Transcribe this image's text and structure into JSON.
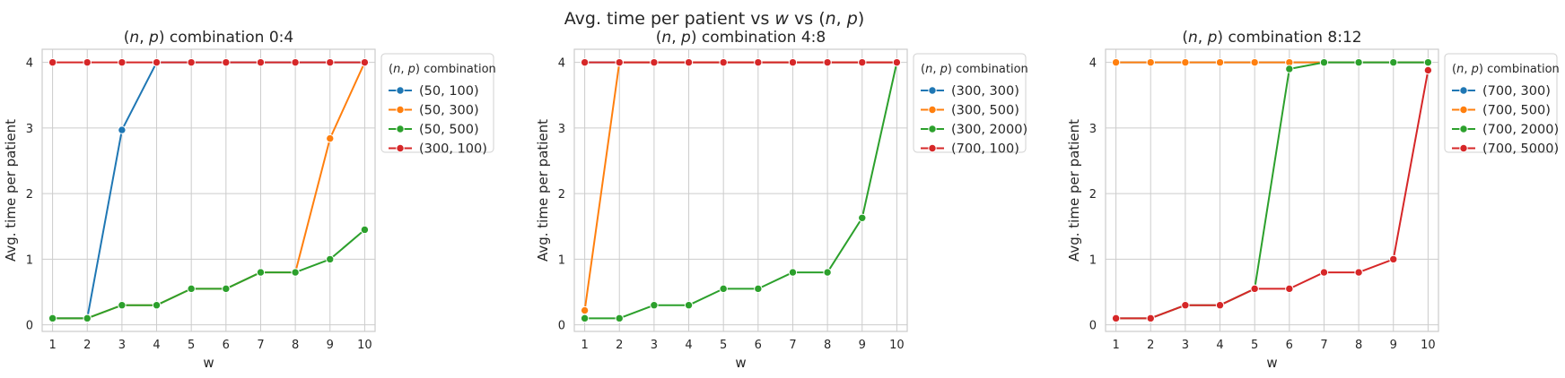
{
  "figure": {
    "suptitle": "Avg. time per patient vs w vs (n, p)"
  },
  "chart_data": [
    {
      "type": "line",
      "title": "(n, p) combination 0:4",
      "xlabel": "w",
      "ylabel": "Avg. time per patient",
      "x": [
        1,
        2,
        3,
        4,
        5,
        6,
        7,
        8,
        9,
        10
      ],
      "xlim": [
        0.7,
        10.3
      ],
      "ylim": [
        -0.1,
        4.2
      ],
      "yticks": [
        0,
        1,
        2,
        3,
        4
      ],
      "grid": true,
      "legend": {
        "title": "(n, p) combination",
        "placement": "outside-right-top"
      },
      "series": [
        {
          "name": "(50, 100)",
          "color": "#1f77b4",
          "values": [
            0.1,
            0.1,
            2.97,
            4,
            4,
            4,
            4,
            4,
            4,
            4
          ]
        },
        {
          "name": "(50, 300)",
          "color": "#ff7f0e",
          "values": [
            0.1,
            0.1,
            0.3,
            0.3,
            0.55,
            0.55,
            0.8,
            0.8,
            2.84,
            4
          ]
        },
        {
          "name": "(50, 500)",
          "color": "#2ca02c",
          "values": [
            0.1,
            0.1,
            0.3,
            0.3,
            0.55,
            0.55,
            0.8,
            0.8,
            1.0,
            1.45
          ]
        },
        {
          "name": "(300, 100)",
          "color": "#d62728",
          "values": [
            4,
            4,
            4,
            4,
            4,
            4,
            4,
            4,
            4,
            4
          ]
        }
      ]
    },
    {
      "type": "line",
      "title": "(n, p) combination 4:8",
      "xlabel": "w",
      "ylabel": "Avg. time per patient",
      "x": [
        1,
        2,
        3,
        4,
        5,
        6,
        7,
        8,
        9,
        10
      ],
      "xlim": [
        0.7,
        10.3
      ],
      "ylim": [
        -0.1,
        4.2
      ],
      "yticks": [
        0,
        1,
        2,
        3,
        4
      ],
      "grid": true,
      "legend": {
        "title": "(n, p) combination",
        "placement": "outside-right-top"
      },
      "series": [
        {
          "name": "(300, 300)",
          "color": "#1f77b4",
          "values": [
            4,
            4,
            4,
            4,
            4,
            4,
            4,
            4,
            4,
            4
          ]
        },
        {
          "name": "(300, 500)",
          "color": "#ff7f0e",
          "values": [
            0.22,
            4,
            4,
            4,
            4,
            4,
            4,
            4,
            4,
            4
          ]
        },
        {
          "name": "(300, 2000)",
          "color": "#2ca02c",
          "values": [
            0.1,
            0.1,
            0.3,
            0.3,
            0.55,
            0.55,
            0.8,
            0.8,
            1.63,
            4
          ]
        },
        {
          "name": "(700, 100)",
          "color": "#d62728",
          "values": [
            4,
            4,
            4,
            4,
            4,
            4,
            4,
            4,
            4,
            4
          ]
        }
      ]
    },
    {
      "type": "line",
      "title": "(n, p) combination 8:12",
      "xlabel": "w",
      "ylabel": "Avg. time per patient",
      "x": [
        1,
        2,
        3,
        4,
        5,
        6,
        7,
        8,
        9,
        10
      ],
      "xlim": [
        0.7,
        10.3
      ],
      "ylim": [
        -0.1,
        4.2
      ],
      "yticks": [
        0,
        1,
        2,
        3,
        4
      ],
      "grid": true,
      "legend": {
        "title": "(n, p) combination",
        "placement": "outside-right-top"
      },
      "series": [
        {
          "name": "(700, 300)",
          "color": "#1f77b4",
          "values": [
            4,
            4,
            4,
            4,
            4,
            4,
            4,
            4,
            4,
            4
          ]
        },
        {
          "name": "(700, 500)",
          "color": "#ff7f0e",
          "values": [
            4,
            4,
            4,
            4,
            4,
            4,
            4,
            4,
            4,
            4
          ]
        },
        {
          "name": "(700, 2000)",
          "color": "#2ca02c",
          "values": [
            0.1,
            0.1,
            0.3,
            0.3,
            0.55,
            3.9,
            4,
            4,
            4,
            4
          ]
        },
        {
          "name": "(700, 5000)",
          "color": "#d62728",
          "values": [
            0.1,
            0.1,
            0.3,
            0.3,
            0.55,
            0.55,
            0.8,
            0.8,
            1.0,
            3.88
          ]
        }
      ]
    }
  ]
}
